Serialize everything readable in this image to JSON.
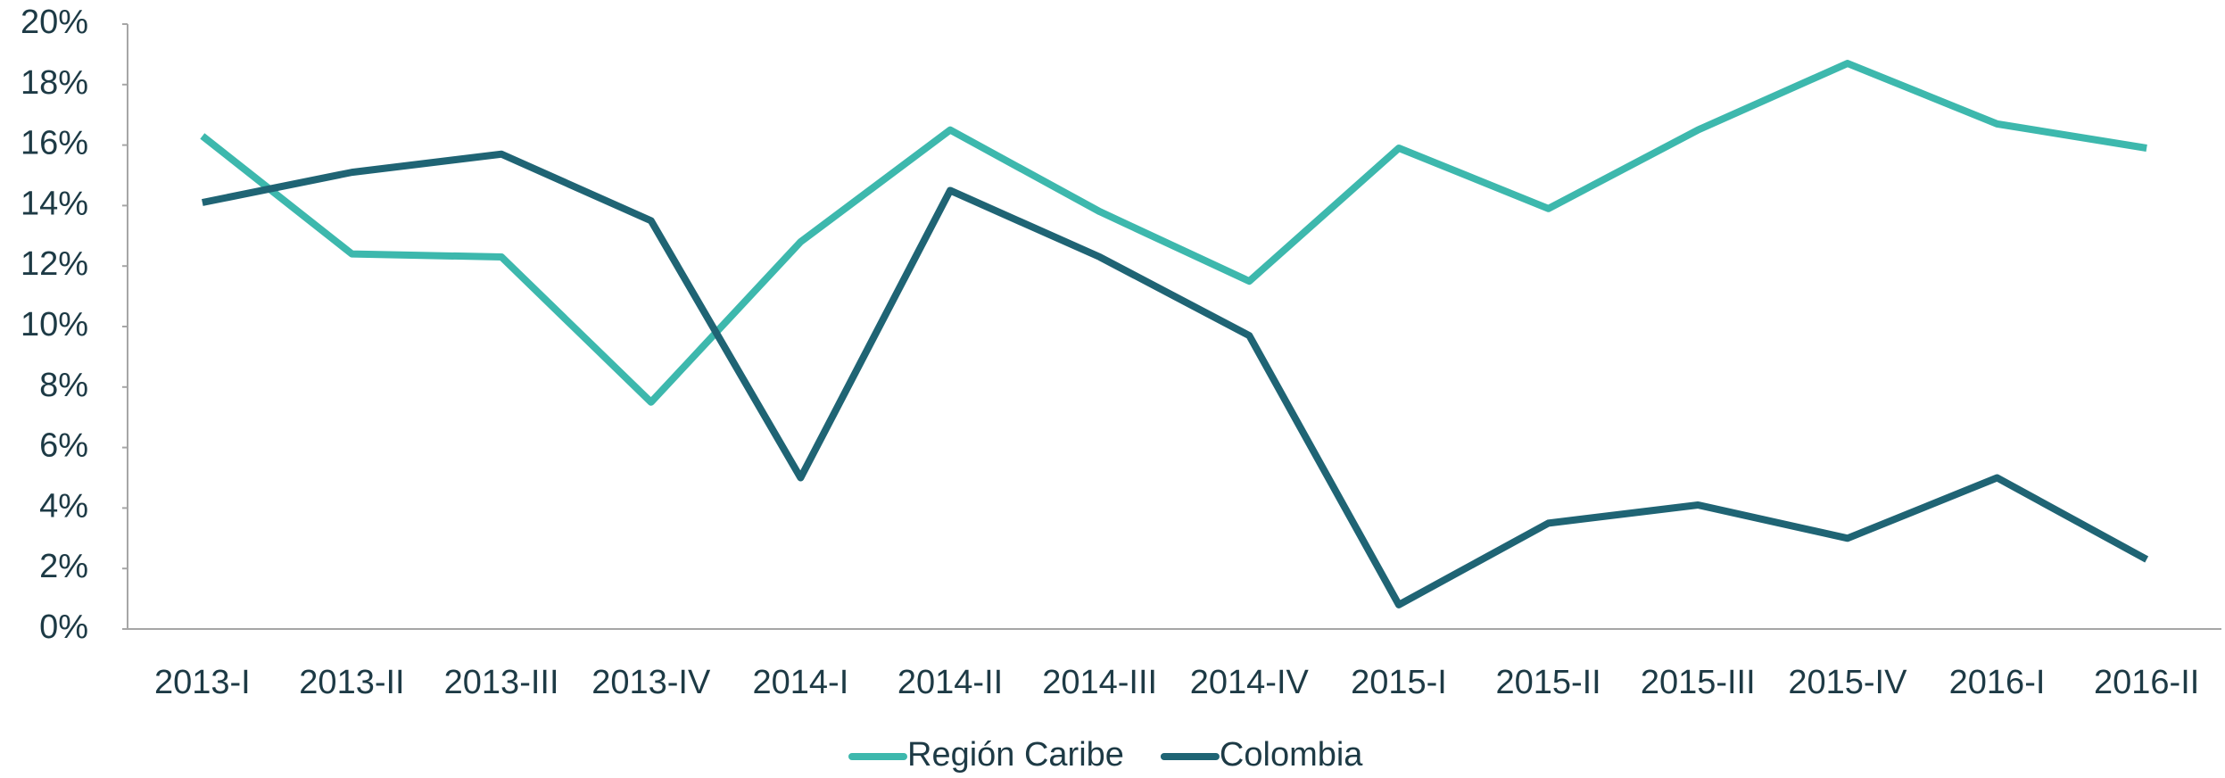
{
  "chart_data": {
    "type": "line",
    "categories": [
      "2013-I",
      "2013-II",
      "2013-III",
      "2013-IV",
      "2014-I",
      "2014-II",
      "2014-III",
      "2014-IV",
      "2015-I",
      "2015-II",
      "2015-III",
      "2015-IV",
      "2016-I",
      "2016-II"
    ],
    "series": [
      {
        "name": "Región Caribe",
        "color": "#3db8ad",
        "values": [
          16.3,
          12.4,
          12.3,
          7.5,
          12.8,
          16.5,
          13.8,
          11.5,
          15.9,
          13.9,
          16.5,
          18.7,
          16.7,
          15.9
        ]
      },
      {
        "name": "Colombia",
        "color": "#1f6474",
        "values": [
          14.1,
          15.1,
          15.7,
          13.5,
          5.0,
          14.5,
          12.3,
          9.7,
          0.8,
          3.5,
          4.1,
          3.0,
          5.0,
          2.3
        ]
      }
    ],
    "ylim": [
      0,
      20
    ],
    "yticks": [
      {
        "value": 0,
        "label": "0%"
      },
      {
        "value": 2,
        "label": "2%"
      },
      {
        "value": 4,
        "label": "4%"
      },
      {
        "value": 6,
        "label": "6%"
      },
      {
        "value": 8,
        "label": "8%"
      },
      {
        "value": 10,
        "label": "10%"
      },
      {
        "value": 12,
        "label": "12%"
      },
      {
        "value": 14,
        "label": "14%"
      },
      {
        "value": 16,
        "label": "16%"
      },
      {
        "value": 18,
        "label": "18%"
      },
      {
        "value": 20,
        "label": "20%"
      }
    ],
    "grid": false,
    "legend": "bottom"
  }
}
